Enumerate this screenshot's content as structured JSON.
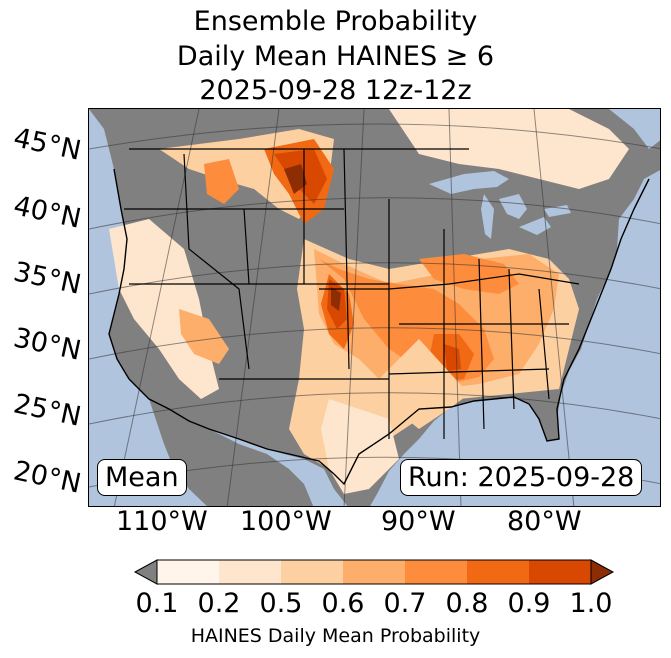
{
  "title": {
    "line1": "Ensemble Probability",
    "line2": "Daily Mean HAINES ≥ 6",
    "line3": "2025-09-28 12z-12z"
  },
  "map": {
    "region": "Continental United States",
    "latitude_labels": [
      "45°N",
      "40°N",
      "35°N",
      "30°N",
      "25°N",
      "20°N"
    ],
    "longitude_labels": [
      "110°W",
      "100°W",
      "90°W",
      "80°W"
    ],
    "mean_label": "Mean",
    "run_label": "Run: 2025-09-28",
    "colors": {
      "ocean": "#b0c4de",
      "below_min": "#808080",
      "c1": "#fff5eb",
      "c2": "#fee6ce",
      "c3": "#fdd0a2",
      "c4": "#fdae6b",
      "c5": "#fd8d3c",
      "c6": "#f16913",
      "c7": "#d94801",
      "c8": "#8c2d04"
    }
  },
  "colorbar": {
    "ticks": [
      "0.1",
      "0.2",
      "0.5",
      "0.6",
      "0.7",
      "0.8",
      "0.9",
      "1.0"
    ],
    "label": "HAINES Daily Mean Probability"
  }
}
